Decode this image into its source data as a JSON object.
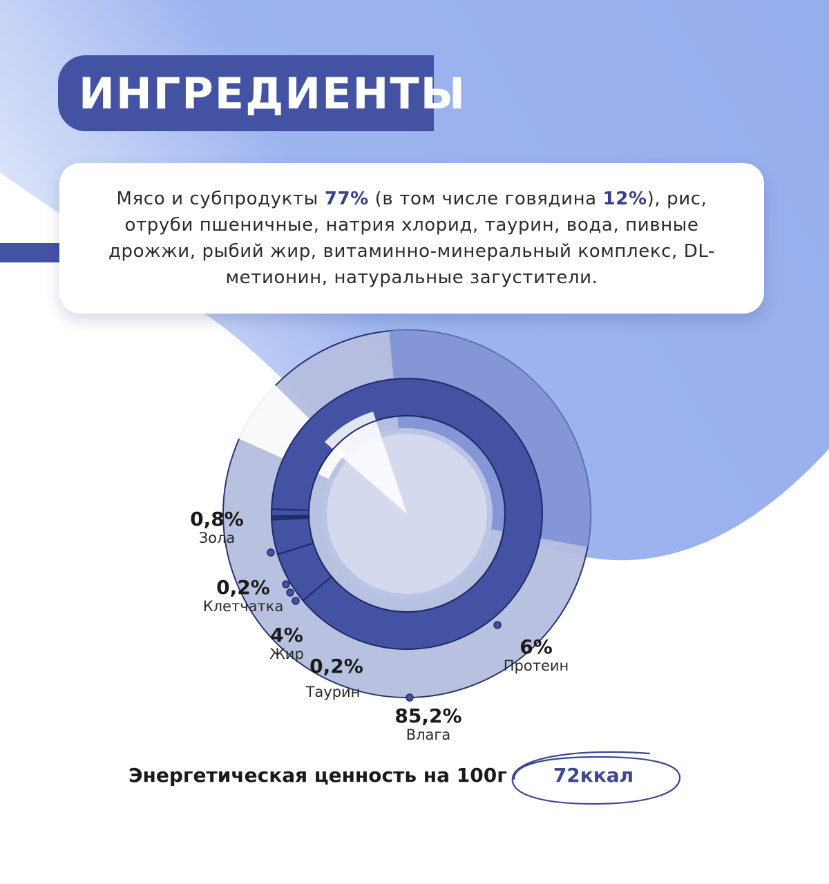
{
  "title": "ИНГРЕДИЕНТЫ",
  "ingredients": {
    "part1": "Мясо и субпродукты ",
    "meat_pct": "77%",
    "part2": " (в том числе говядина ",
    "beef_pct": "12%",
    "part3": "), рис, отруби пшеничные, натрия хлорид, таурин, вода, пивные дрожжи, рыбий жир, витаминно-минеральный комплекс, DL-метионин, натуральные загустители."
  },
  "chart_data": {
    "type": "pie",
    "series": [
      {
        "label": "Влага",
        "value": 85.2,
        "display": "85,2%"
      },
      {
        "label": "Протеин",
        "value": 6,
        "display": "6%"
      },
      {
        "label": "Жир",
        "value": 4,
        "display": "4%"
      },
      {
        "label": "Клетчатка",
        "value": 0.2,
        "display": "0,2%"
      },
      {
        "label": "Таурин",
        "value": 0.2,
        "display": "0,2%"
      },
      {
        "label": "Зола",
        "value": 0.8,
        "display": "0,8%"
      }
    ]
  },
  "energy": {
    "label": "Энергетическая ценность на 100г",
    "value": "72ккал"
  },
  "colors": {
    "navy": "#4352a2",
    "light_blue": "#97aeec",
    "lavender": "#b6bee0",
    "inner_disc": "#d4d9ee",
    "outline": "#1f2a66"
  }
}
